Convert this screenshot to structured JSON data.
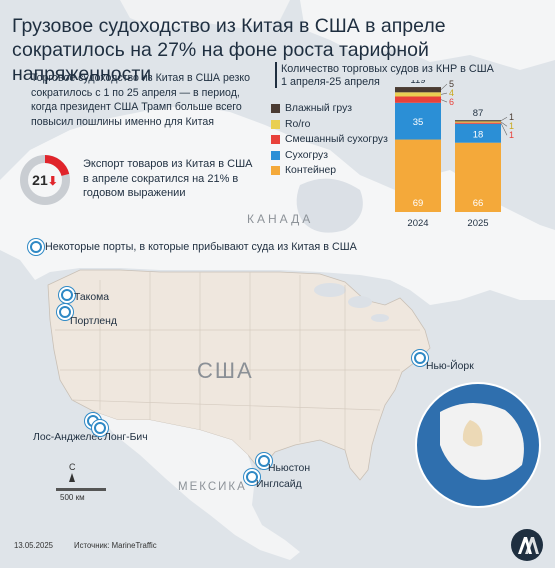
{
  "title": "Грузовое судоходство из Китая в США в апреле сократилось на 27% на фоне роста тарифной напряженности",
  "lead": "Торговое судоходство из Китая в США резко сократилось с 1 по 25 апреля — в период, когда президент США Трамп больше всего повысил пошлины именно для Китая",
  "export_stat": {
    "value": "21",
    "percent": 21,
    "text": "Экспорт товаров из Китая в США в апреле сократился на 21% в годовом выражении",
    "accent_color": "#e0242b"
  },
  "ports_legend": "Некоторые порты, в которые прибывают суда из Китая в США",
  "ports": [
    {
      "name": "Такома"
    },
    {
      "name": "Портленд"
    },
    {
      "name": "Лос-Анджелес"
    },
    {
      "name": "Лонг-Бич"
    },
    {
      "name": "Ньюстон"
    },
    {
      "name": "Инглсайд"
    },
    {
      "name": "Нью-Йорк"
    }
  ],
  "countries": {
    "usa": "США",
    "canada": "КАНАДА",
    "mexico": "МЕКСИКА"
  },
  "compass": "С",
  "scale": "500 км",
  "footer": {
    "date": "13.05.2025",
    "source": "Источник: MarineTraffic"
  },
  "chart_data": {
    "type": "bar",
    "stacked": true,
    "title": "Количество торговых судов из КНР в США",
    "subtitle": "1 апреля-25 апреля",
    "categories": [
      "2024",
      "2025"
    ],
    "totals": [
      119,
      87
    ],
    "series": [
      {
        "name": "Контейнер",
        "color": "#f4a93a",
        "values": [
          69,
          66
        ]
      },
      {
        "name": "Сухогруз",
        "color": "#2b8fd6",
        "values": [
          35,
          18
        ]
      },
      {
        "name": "Смешанный сухогруз",
        "color": "#e8413a",
        "values": [
          6,
          1
        ]
      },
      {
        "name": "Ro/ro",
        "color": "#e9cf52",
        "values": [
          4,
          1
        ]
      },
      {
        "name": "Влажный груз",
        "color": "#4a3b32",
        "values": [
          5,
          1
        ]
      }
    ],
    "legend_order": [
      "Влажный груз",
      "Ro/ro",
      "Смешанный сухогруз",
      "Сухогруз",
      "Контейнер"
    ]
  }
}
